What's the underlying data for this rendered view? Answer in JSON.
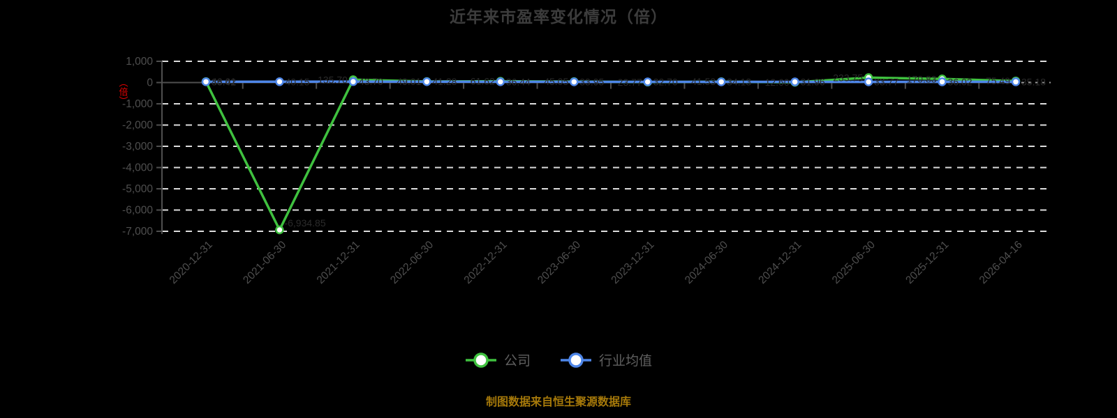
{
  "title": "近年来市盈率变化情况（倍）",
  "y_axis_title": "（倍）",
  "footer": "制图数据来自恒生聚源数据库",
  "colors": {
    "background": "#000000",
    "title_text": "#3c3c3c",
    "axis_text": "#4f4f4f",
    "gridline": "#dddddd",
    "axis_line": "#4f4f4f",
    "y_title_red": "#e60000",
    "company_green": "#3fc13f",
    "industry_blue": "#4e86e8",
    "legend_text": "#606060",
    "footer_gold": "#a6790a",
    "data_label": "#2b2b2b"
  },
  "legend": [
    {
      "label": "公司",
      "color": "#3fc13f"
    },
    {
      "label": "行业均值",
      "color": "#4e86e8"
    }
  ],
  "chart_data": {
    "type": "line",
    "title": "近年来市盈率变化情况（倍）",
    "ylabel": "（倍）",
    "categories": [
      "2020-12-31",
      "2021-06-30",
      "2021-12-31",
      "2022-06-30",
      "2022-12-31",
      "2023-06-30",
      "2023-12-31",
      "2024-06-30",
      "2024-12-31",
      "2025-06-30",
      "2025-12-31",
      "2026-04-16"
    ],
    "series": [
      {
        "name": "公司",
        "color": "#3fc13f",
        "values": [
          46.01,
          -6934.85,
          135.7,
          49.01,
          61.62,
          45.05,
          23.77,
          41.53,
          12.6,
          233.75,
          170.83,
          75.49
        ],
        "labels": [
          "46.01",
          "-6,934.85",
          "135.70",
          "49.01",
          "61.62",
          "45.05",
          "23.77",
          "41.53",
          "12.60",
          "233.75",
          "170.83",
          "75.49"
        ]
      },
      {
        "name": "行业均值",
        "color": "#4e86e8",
        "values": [
          38.42,
          40.15,
          43.7,
          41.28,
          36.44,
          33.95,
          32.7,
          34.13,
          31.96,
          33.77,
          36.02,
          35.18
        ],
        "labels": [
          "38.42",
          "40.15",
          "43.70",
          "41.28",
          "36.44",
          "33.95",
          "32.70",
          "34.13",
          "31.96",
          "33.77",
          "36.02",
          "35.18"
        ]
      }
    ],
    "ylim": [
      -7000,
      1000
    ],
    "y_ticks": [
      "1,000",
      "0",
      "-1,000",
      "-2,000",
      "-3,000",
      "-4,000",
      "-5,000",
      "-6,000",
      "-7,000"
    ],
    "y_tick_values": [
      1000,
      0,
      -1000,
      -2000,
      -3000,
      -4000,
      -5000,
      -6000,
      -7000
    ],
    "grid": "horizontal-dashed",
    "legend_position": "bottom"
  }
}
